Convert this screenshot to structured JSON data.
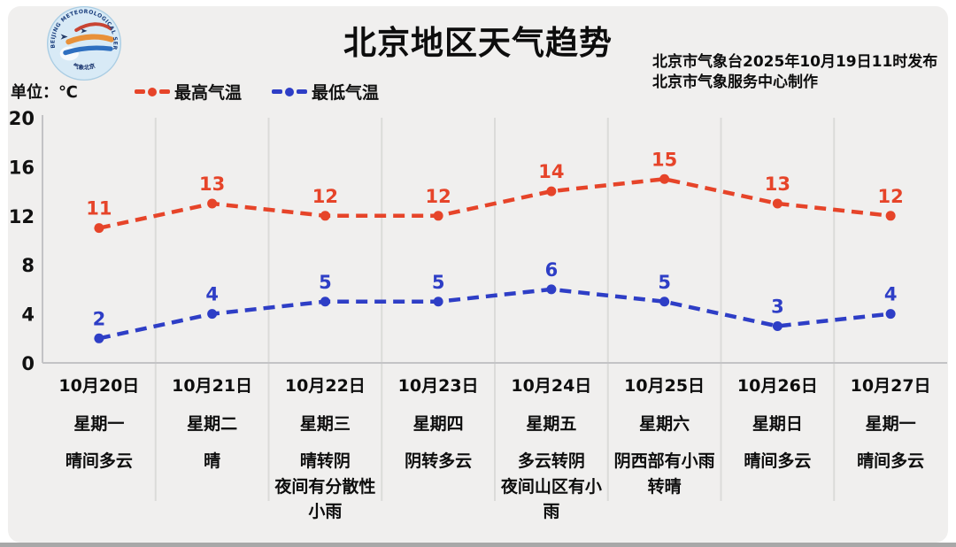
{
  "window": {
    "card_bg": "#f0efee",
    "bottom_bar_color": "#a8a8a8"
  },
  "header": {
    "title": "北京地区天气趋势",
    "issued_line1": "北京市气象台2025年10月19日11时发布",
    "issued_line2": "北京市气象服务中心制作",
    "unit_label": "单位：℃"
  },
  "logo": {
    "ring_text": "BEIJING METEOROLOGICAL SERVICE",
    "bottom_text": "气象北京"
  },
  "legend": {
    "items": [
      {
        "label": "最高气温",
        "color": "#e64429"
      },
      {
        "label": "最低气温",
        "color": "#2e3ec6"
      }
    ]
  },
  "chart_data": {
    "type": "line",
    "title": "北京地区天气趋势",
    "ylabel": "单位：℃",
    "ylim": [
      0,
      20
    ],
    "yticks": [
      0,
      4,
      8,
      12,
      16,
      20
    ],
    "grid": "vertical-column-separators",
    "legend_position": "top-left",
    "line_style": "dashed-with-round-markers",
    "categories": [
      "10月20日",
      "10月21日",
      "10月22日",
      "10月23日",
      "10月24日",
      "10月25日",
      "10月26日",
      "10月27日"
    ],
    "days": [
      {
        "date": "10月20日",
        "weekday": "星期一",
        "weather": "晴间多云"
      },
      {
        "date": "10月21日",
        "weekday": "星期二",
        "weather": "晴"
      },
      {
        "date": "10月22日",
        "weekday": "星期三",
        "weather": "晴转阴\n夜间有分散性小雨"
      },
      {
        "date": "10月23日",
        "weekday": "星期四",
        "weather": "阴转多云"
      },
      {
        "date": "10月24日",
        "weekday": "星期五",
        "weather": "多云转阴\n夜间山区有小雨"
      },
      {
        "date": "10月25日",
        "weekday": "星期六",
        "weather": "阴西部有小雨转晴"
      },
      {
        "date": "10月26日",
        "weekday": "星期日",
        "weather": "晴间多云"
      },
      {
        "date": "10月27日",
        "weekday": "星期一",
        "weather": "晴间多云"
      }
    ],
    "series": [
      {
        "name": "最高气温",
        "color": "#e64429",
        "values": [
          11,
          13,
          12,
          12,
          14,
          15,
          13,
          12
        ]
      },
      {
        "name": "最低气温",
        "color": "#2e3ec6",
        "values": [
          2,
          4,
          5,
          5,
          6,
          5,
          3,
          4
        ]
      }
    ],
    "axis_color": "#c3c3c5",
    "gridline_color": "#dbdbd9"
  }
}
